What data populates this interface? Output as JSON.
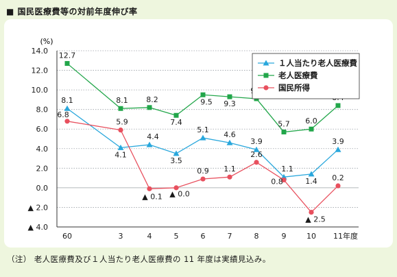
{
  "figure": {
    "title": "■ 国民医療費等の対前年度伸び率",
    "note": "（注） 老人医療費及び１人当たり老人医療費の 11 年度は実績見込み。"
  },
  "chart_data": {
    "type": "line",
    "title": "国民医療費等の対前年度伸び率",
    "ylabel": "(%)",
    "xlabel": "",
    "ylim": [
      -4.0,
      14.0
    ],
    "yticks": [
      -4.0,
      -2.0,
      0.0,
      2.0,
      4.0,
      6.0,
      8.0,
      10.0,
      12.0,
      14.0
    ],
    "ytick_labels": [
      "▲ 4.0",
      "▲ 2.0",
      "0.0",
      "2.0",
      "4.0",
      "6.0",
      "8.0",
      "10.0",
      "12.0",
      "14.0"
    ],
    "categories": [
      "60",
      "3",
      "4",
      "5",
      "6",
      "7",
      "8",
      "9",
      "10",
      "11年度"
    ],
    "grid": true,
    "legend": "top-right",
    "series": [
      {
        "name": "１人当たり老人医療費",
        "color": "#29a7dc",
        "marker": "triangle",
        "values": [
          8.1,
          4.1,
          4.4,
          3.5,
          5.1,
          4.6,
          3.9,
          1.1,
          1.4,
          3.9
        ],
        "labels": [
          "8.1",
          "4.1",
          "4.4",
          "3.5",
          "5.1",
          "4.6",
          "3.9",
          "1.1",
          "1.4",
          "3.9"
        ]
      },
      {
        "name": "老人医療費",
        "color": "#22a64a",
        "marker": "square",
        "values": [
          12.7,
          8.1,
          8.2,
          7.4,
          9.5,
          9.3,
          9.1,
          5.7,
          6.0,
          8.4
        ],
        "labels": [
          "12.7",
          "8.1",
          "8.2",
          "7.4",
          "9.5",
          "9.3",
          "9.1",
          "5.7",
          "6.0",
          "8.4"
        ]
      },
      {
        "name": "国民所得",
        "color": "#e8505e",
        "marker": "circle",
        "values": [
          6.8,
          5.9,
          -0.1,
          0.0,
          0.9,
          1.1,
          2.6,
          0.8,
          -2.5,
          0.2
        ],
        "labels": [
          "6.8",
          "5.9",
          "▲ 0.1",
          "▲ 0.0",
          "0.9",
          "1.1",
          "2.6",
          "0.8",
          "▲ 2.5",
          "0.2"
        ]
      }
    ]
  }
}
